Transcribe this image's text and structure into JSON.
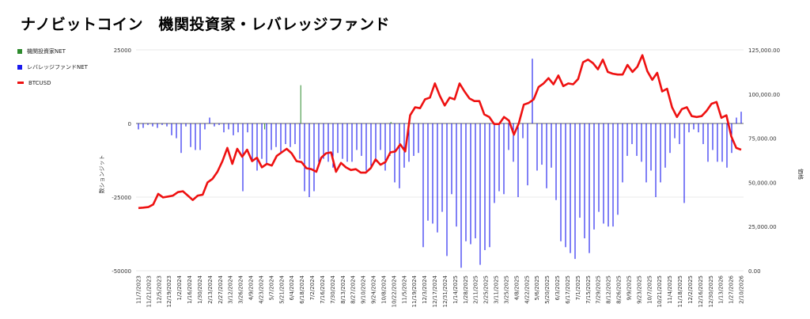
{
  "title": "ナノビットコイン　機関投資家・レバレッジファンド",
  "chart_data": {
    "type": "bar+line",
    "ylabel": "数ションジット",
    "y2label": "価格",
    "left_axis": {
      "ticks": [
        "25000",
        "0",
        "-25000",
        "-50000"
      ],
      "range": [
        -50000,
        25000
      ]
    },
    "right_axis": {
      "ticks": [
        "125,000.00",
        "100,000.00",
        "75,000.00",
        "50,000.00",
        "25,000.00",
        "0.00"
      ],
      "range": [
        0,
        125000
      ]
    },
    "x_tick_labels": [
      "11/7/2023",
      "11/21/2023",
      "12/5/2023",
      "12/19/2023",
      "1/2/2024",
      "1/16/2024",
      "1/30/2024",
      "2/13/2024",
      "2/27/2024",
      "3/12/2024",
      "3/26/2024",
      "4/9/2024",
      "4/23/2024",
      "5/7/2024",
      "5/21/2024",
      "6/4/2024",
      "6/18/2024",
      "7/2/2024",
      "7/16/2024",
      "7/30/2024",
      "8/13/2024",
      "8/27/2024",
      "9/10/2024",
      "9/24/2024",
      "10/8/2024",
      "10/22/2024",
      "11/5/2024",
      "11/19/2024",
      "12/3/2024",
      "12/17/2024",
      "12/31/2024",
      "1/14/2025",
      "1/28/2025",
      "2/11/2025",
      "2/25/2025",
      "3/11/2025",
      "3/25/2025",
      "4/8/2025",
      "4/22/2025",
      "5/6/2025",
      "5/20/2025",
      "6/3/2025",
      "6/17/2025",
      "7/1/2025",
      "7/15/2025",
      "7/29/2025",
      "8/12/2025",
      "8/26/2025",
      "9/9/2025",
      "9/23/2025",
      "10/7/2025",
      "10/21/2025",
      "11/4/2025",
      "11/18/2025",
      "12/2/2025",
      "12/16/2025",
      "12/30/2025",
      "1/13/2026",
      "1/27/2026",
      "2/10/2026"
    ],
    "series": [
      {
        "name": "機関投資家NET",
        "color": "#2e8b2e",
        "values": [
          {
            "i": 7,
            "v": -2000
          },
          {
            "i": 9,
            "v": 13000
          },
          {
            "i": 14,
            "v": 500
          }
        ]
      },
      {
        "name": "レバレッジファンドNET",
        "color": "#0000ee",
        "values": [
          -2000,
          -1500,
          -500,
          -1000,
          -1500,
          -500,
          -1000,
          -4000,
          -5000,
          -10000,
          -1000,
          -8000,
          -9000,
          -9000,
          -2000,
          2000,
          -1000,
          -500,
          -3000,
          -2000,
          -4000,
          -3000,
          -23000,
          -3000,
          -13000,
          -16000,
          -12000,
          -14000,
          -9000,
          -8000,
          -10000,
          -7000,
          -8000,
          -7000,
          -12000,
          -23000,
          -25000,
          -23000,
          -14000,
          -12000,
          -13000,
          -15000,
          -10000,
          -12000,
          -13000,
          -13000,
          -9000,
          -11000,
          -16000,
          -15000,
          -13000,
          -9000,
          -16000,
          -11000,
          -20000,
          -22000,
          -15000,
          -13000,
          -11000,
          -10000,
          -42000,
          -33000,
          -34000,
          -37000,
          -30000,
          -45000,
          -24000,
          -35000,
          -49000,
          -40000,
          -41000,
          -39000,
          -48000,
          -43000,
          -42000,
          -27000,
          -23000,
          -24000,
          -9000,
          -13000,
          -25000,
          -5000,
          -21000,
          22000,
          -16000,
          -14000,
          -22000,
          -15000,
          -26000,
          -40000,
          -42000,
          -44000,
          -46000,
          -32000,
          -39000,
          -44000,
          -36000,
          -30000,
          -34000,
          -35000,
          -35000,
          -31000,
          -20000,
          -11000,
          -7000,
          -11000,
          -13000,
          -20000,
          -16000,
          -25000,
          -20000,
          -15000,
          -10000,
          -5000,
          -7000,
          -27000,
          -3000,
          -2000,
          -3000,
          -7000,
          -13000,
          -9000,
          -13000,
          -13000,
          -15000,
          -10000,
          2000,
          4000
        ]
      },
      {
        "name": "BTCUSD",
        "color": "#ee1111",
        "values": [
          35500,
          35700,
          36000,
          37500,
          43500,
          41500,
          42000,
          42500,
          44500,
          45000,
          42500,
          40000,
          42500,
          43000,
          50000,
          52000,
          56000,
          62000,
          69500,
          60500,
          69000,
          64500,
          68500,
          62000,
          64000,
          58500,
          60500,
          59500,
          65000,
          67000,
          69000,
          66500,
          62000,
          61500,
          58000,
          57500,
          56000,
          64000,
          66500,
          67000,
          56000,
          61000,
          58500,
          57000,
          57500,
          55500,
          55500,
          58000,
          63000,
          60000,
          61500,
          67000,
          67500,
          71500,
          67500,
          88000,
          92500,
          92000,
          97000,
          98000,
          106000,
          99000,
          93500,
          98000,
          97000,
          106000,
          101500,
          97500,
          96000,
          96000,
          88500,
          87000,
          83000,
          83000,
          87000,
          85000,
          77000,
          83500,
          94000,
          95000,
          97000,
          104000,
          106000,
          109000,
          105500,
          110500,
          104500,
          106000,
          105500,
          108500,
          118000,
          119500,
          117500,
          114000,
          119500,
          112500,
          111500,
          111000,
          111000,
          116500,
          112500,
          115500,
          122000,
          113000,
          108000,
          112000,
          101500,
          103000,
          92500,
          87000,
          91500,
          92500,
          87500,
          87000,
          87500,
          90500,
          94500,
          95500,
          86500,
          88000,
          76000,
          69500,
          68500
        ]
      }
    ]
  }
}
